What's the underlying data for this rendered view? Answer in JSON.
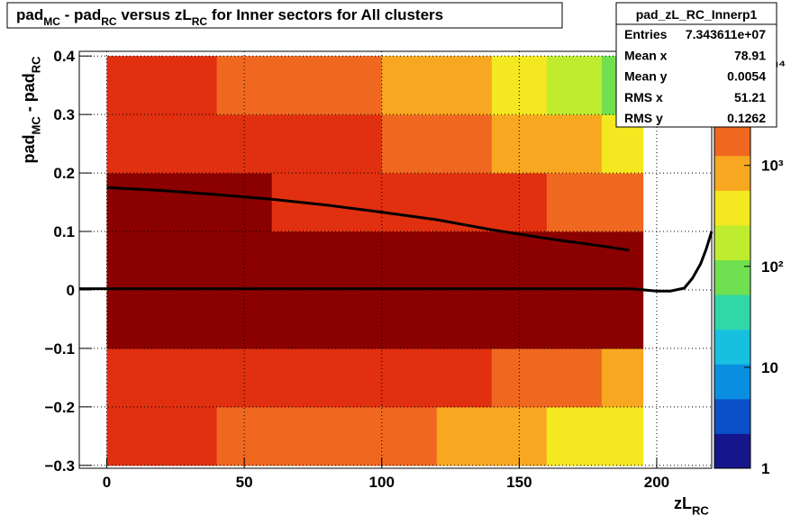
{
  "chart_data": {
    "type": "heatmap",
    "title_parts": [
      "pad",
      "MC",
      " - pad",
      "RC",
      " versus zL",
      "RC",
      " for Inner sectors for All clusters"
    ],
    "ylabel_parts": [
      "pad",
      "MC",
      " - pad",
      "RC"
    ],
    "xlabel_parts": [
      "zL",
      "RC"
    ],
    "xlim": [
      -10,
      220
    ],
    "ylim": [
      -0.305,
      0.408
    ],
    "xticks": [
      0,
      50,
      100,
      150,
      200
    ],
    "yticks": [
      {
        "value": -0.3,
        "label": "−0.3"
      },
      {
        "value": -0.2,
        "label": "−0.2"
      },
      {
        "value": -0.1,
        "label": "−0.1"
      },
      0,
      0.1,
      0.2,
      0.3,
      0.4
    ],
    "grid": true,
    "zlim": [
      1,
      13500
    ],
    "zlog": true,
    "zticks": [
      1,
      10,
      {
        "value": 100,
        "label": "10²"
      },
      {
        "value": 1000,
        "label": "10³"
      },
      {
        "value": 10000,
        "label": "10⁴"
      }
    ],
    "palette": [
      "#16168c",
      "#0a4fc8",
      "#0a8ee0",
      "#18c0e0",
      "#30d8a8",
      "#70e050",
      "#c0ec30",
      "#f4e820",
      "#f8a820",
      "#f06820",
      "#e03010",
      "#8b0000"
    ],
    "xbins": [
      0,
      20,
      40,
      60,
      80,
      100,
      120,
      140,
      160,
      180,
      195
    ],
    "ybins": [
      -0.3,
      -0.2,
      -0.1,
      0,
      0.1,
      0.2,
      0.3,
      0.4
    ],
    "z": [
      [
        3500,
        3000,
        2600,
        2200,
        1800,
        1400,
        1000,
        700,
        450,
        300
      ],
      [
        6000,
        5500,
        5000,
        4500,
        4000,
        3500,
        3000,
        2500,
        1800,
        1200
      ],
      [
        11000,
        11000,
        10500,
        10000,
        10000,
        9500,
        9000,
        8500,
        8000,
        7000
      ],
      [
        11000,
        11000,
        10500,
        10000,
        10000,
        9500,
        9000,
        8500,
        8000,
        7000
      ],
      [
        9000,
        8000,
        7000,
        6000,
        5000,
        4200,
        3500,
        2800,
        2000,
        1500
      ],
      [
        5000,
        4500,
        4000,
        3500,
        3000,
        2400,
        1800,
        1200,
        800,
        500
      ],
      [
        3200,
        2800,
        2400,
        2000,
        1600,
        1200,
        800,
        400,
        200,
        100
      ]
    ],
    "profiles": [
      {
        "color": "#000000",
        "x": [
          -10,
          0,
          20,
          40,
          60,
          80,
          100,
          120,
          140,
          160,
          180,
          190,
          195,
          200,
          205,
          210,
          213,
          216,
          218,
          220
        ],
        "values": [
          0.002,
          0.002,
          0.002,
          0.002,
          0.002,
          0.002,
          0.002,
          0.002,
          0.002,
          0.002,
          0.002,
          0.002,
          0.0,
          -0.002,
          -0.002,
          0.003,
          0.02,
          0.045,
          0.07,
          0.1
        ]
      },
      {
        "color": "#000000",
        "x": [
          0,
          20,
          40,
          60,
          80,
          100,
          120,
          140,
          160,
          180,
          190
        ],
        "values": [
          0.175,
          0.17,
          0.163,
          0.155,
          0.145,
          0.133,
          0.12,
          0.103,
          0.088,
          0.075,
          0.068
        ]
      }
    ],
    "stats": {
      "title": "pad_zL_RC_Innerp1",
      "rows": [
        [
          "Entries",
          "7.343611e+07"
        ],
        [
          "Mean x",
          "78.91"
        ],
        [
          "Mean y",
          "0.0054"
        ],
        [
          "RMS x",
          "51.21"
        ],
        [
          "RMS y",
          "0.1262"
        ]
      ]
    }
  }
}
